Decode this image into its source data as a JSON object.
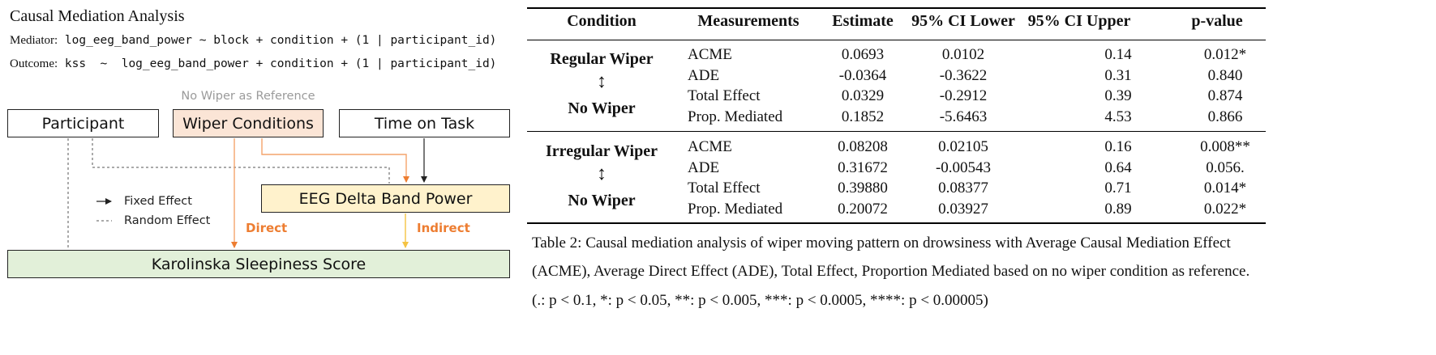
{
  "diagram": {
    "title": "Causal Mediation Analysis",
    "mediator_label": "Mediator:",
    "mediator_formula": " log_eeg_band_power ~ block + condition + (1 | participant_id)",
    "outcome_label": "Outcome:",
    "outcome_formula": " kss  ~  log_eeg_band_power + condition + (1 | participant_id)",
    "reference_note": "No Wiper as Reference",
    "nodes": {
      "participant": "Participant",
      "wiper_conditions": "Wiper Conditions",
      "time_on_task": "Time on Task",
      "eeg_delta": "EEG Delta Band Power",
      "kss": "Karolinska Sleepiness Score"
    },
    "legend": {
      "fixed": "Fixed Effect",
      "random": "Random Effect"
    },
    "path_labels": {
      "direct": "Direct",
      "indirect": "Indirect"
    },
    "colors": {
      "wiper_fill": "#fbe5d6",
      "eeg_fill": "#fff2cc",
      "kss_fill": "#e2f0d9",
      "orange_arrow": "#f4a46b",
      "indirect_arrow": "#f5c342",
      "label_orange": "#ed7d31"
    }
  },
  "table": {
    "headers": [
      "Condition",
      "Measurements",
      "Estimate",
      "95% CI Lower",
      "95% CI Upper",
      "p-value"
    ],
    "groups": [
      {
        "condition_top": "Regular Wiper",
        "condition_arrow": "↕",
        "condition_bottom": "No Wiper",
        "rows": [
          {
            "measure": "ACME",
            "estimate": "0.0693",
            "ci_lower": "0.0102",
            "ci_upper": "0.14",
            "p": "0.012*"
          },
          {
            "measure": "ADE",
            "estimate": "-0.0364",
            "ci_lower": "-0.3622",
            "ci_upper": "0.31",
            "p": "0.840"
          },
          {
            "measure": "Total Effect",
            "estimate": "0.0329",
            "ci_lower": "-0.2912",
            "ci_upper": "0.39",
            "p": "0.874"
          },
          {
            "measure": "Prop. Mediated",
            "estimate": "0.1852",
            "ci_lower": "-5.6463",
            "ci_upper": "4.53",
            "p": "0.866"
          }
        ]
      },
      {
        "condition_top": "Irregular Wiper",
        "condition_arrow": "↕",
        "condition_bottom": "No Wiper",
        "rows": [
          {
            "measure": "ACME",
            "estimate": "0.08208",
            "ci_lower": "0.02105",
            "ci_upper": "0.16",
            "p": "0.008**"
          },
          {
            "measure": "ADE",
            "estimate": "0.31672",
            "ci_lower": "-0.00543",
            "ci_upper": "0.64",
            "p": "0.056."
          },
          {
            "measure": "Total Effect",
            "estimate": "0.39880",
            "ci_lower": "0.08377",
            "ci_upper": "0.71",
            "p": "0.014*"
          },
          {
            "measure": "Prop. Mediated",
            "estimate": "0.20072",
            "ci_lower": "0.03927",
            "ci_upper": "0.89",
            "p": "0.022*"
          }
        ]
      }
    ],
    "caption_lines": [
      "Table 2: Causal mediation analysis of wiper moving pattern on drowsiness with Average Causal Mediation Effect",
      "(ACME), Average Direct Effect (ADE), Total Effect, Proportion Mediated based on no wiper condition as reference.",
      "(.: p < 0.1, *: p < 0.05, **: p < 0.005, ***: p < 0.0005, ****: p < 0.00005)"
    ]
  }
}
